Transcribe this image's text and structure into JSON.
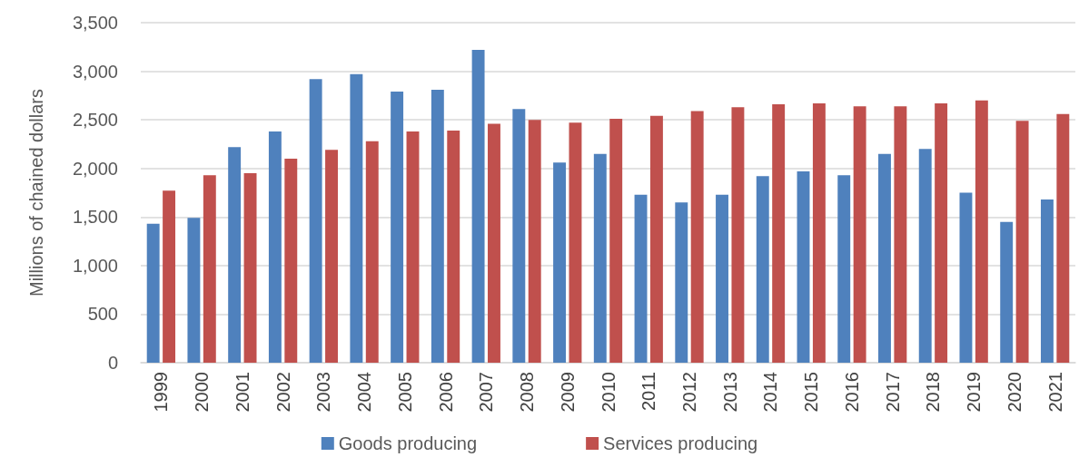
{
  "chart_data": {
    "type": "bar",
    "ylabel": "Millions of chained dollars",
    "categories": [
      "1999",
      "2000",
      "2001",
      "2002",
      "2003",
      "2004",
      "2005",
      "2006",
      "2007",
      "2008",
      "2009",
      "2010",
      "2011",
      "2012",
      "2013",
      "2014",
      "2015",
      "2016",
      "2017",
      "2018",
      "2019",
      "2020",
      "2021"
    ],
    "series": [
      {
        "name": "Goods producing",
        "color": "#4f81bd",
        "values": [
          1430,
          1490,
          2220,
          2380,
          2920,
          2970,
          2790,
          2810,
          3220,
          2610,
          2060,
          2150,
          1730,
          1650,
          1730,
          1920,
          1970,
          1930,
          2150,
          2200,
          1750,
          1450,
          1680
        ]
      },
      {
        "name": "Services producing",
        "color": "#c0504d",
        "values": [
          1770,
          1930,
          1950,
          2100,
          2190,
          2280,
          2380,
          2390,
          2460,
          2500,
          2470,
          2510,
          2540,
          2590,
          2630,
          2660,
          2670,
          2640,
          2640,
          2670,
          2700,
          2490,
          2560
        ]
      }
    ],
    "ylim": [
      0,
      3500
    ],
    "yticks": [
      0,
      500,
      {
        "value": 1000,
        "label": "1,000"
      },
      {
        "value": 1500,
        "label": "1,500"
      },
      {
        "value": 2000,
        "label": "2,000"
      },
      {
        "value": 2500,
        "label": "2,500"
      },
      {
        "value": 3000,
        "label": "3,000"
      },
      {
        "value": 3500,
        "label": "3,500"
      }
    ],
    "grid": "y",
    "legend": "bottom"
  }
}
